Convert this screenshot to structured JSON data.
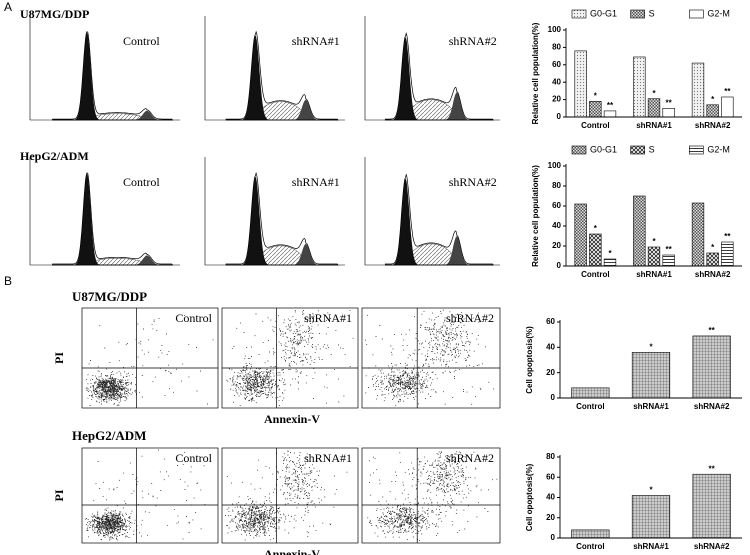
{
  "panel_labels": [
    "A",
    "B"
  ],
  "cell_cycle_plots": [
    {
      "cell_line": "U87MG/DDP",
      "titles": [
        "Control",
        "shRNA#1",
        "shRNA#2"
      ]
    },
    {
      "cell_line": "HepG2/ADM",
      "titles": [
        "Control",
        "shRNA#1",
        "shRNA#2"
      ]
    }
  ],
  "apoptosis_plots": [
    {
      "cell_line": "U87MG/DDP",
      "titles": [
        "Control",
        "shRNA#1",
        "shRNA#2"
      ],
      "y_label": "PI",
      "x_label": "Annexin-V"
    },
    {
      "cell_line": "HepG2/ADM",
      "titles": [
        "Control",
        "shRNA#1",
        "shRNA#2"
      ],
      "y_label": "PI",
      "x_label": "Annexin-V"
    }
  ],
  "chart_data": [
    {
      "type": "bar",
      "y_label": "Relative cell population(%)",
      "categories": [
        "Control",
        "shRNA#1",
        "shRNA#2"
      ],
      "series": [
        {
          "name": "G0-G1",
          "pattern": "dots",
          "values": [
            76,
            69,
            62
          ]
        },
        {
          "name": "S",
          "pattern": "checker",
          "values": [
            18,
            21,
            14
          ],
          "significance": [
            "*",
            "*",
            "*"
          ]
        },
        {
          "name": "G2-M",
          "pattern": "none",
          "values": [
            7,
            10,
            23
          ],
          "significance": [
            "**",
            "**",
            "**"
          ]
        }
      ],
      "ylim": [
        0,
        100
      ],
      "yticks": [
        0,
        20,
        40,
        60,
        80,
        100
      ],
      "legend": "top"
    },
    {
      "type": "bar",
      "y_label": "Relative cell population(%)",
      "categories": [
        "Control",
        "shRNA#1",
        "shRNA#2"
      ],
      "series": [
        {
          "name": "G0-G1",
          "pattern": "checker",
          "values": [
            62,
            70,
            63
          ]
        },
        {
          "name": "S",
          "pattern": "crosshatch",
          "values": [
            32,
            19,
            13
          ],
          "significance": [
            "*",
            "*",
            "*"
          ]
        },
        {
          "name": "G2-M",
          "pattern": "hlines",
          "values": [
            7,
            11,
            24
          ],
          "significance": [
            "*",
            "**",
            "**"
          ]
        }
      ],
      "ylim": [
        0,
        100
      ],
      "yticks": [
        0,
        20,
        40,
        60,
        80,
        100
      ],
      "legend": "top"
    },
    {
      "type": "bar",
      "y_label": "Cell opoptosis(%)",
      "categories": [
        "Control",
        "shRNA#1",
        "shRNA#2"
      ],
      "values": [
        8,
        36,
        49
      ],
      "significance": [
        null,
        "*",
        "**"
      ],
      "pattern": "grid",
      "ylim": [
        0,
        60
      ],
      "yticks": [
        0,
        20,
        40,
        60
      ]
    },
    {
      "type": "bar",
      "y_label": "Cell opoptosis(%)",
      "categories": [
        "Control",
        "shRNA#1",
        "shRNA#2"
      ],
      "values": [
        8,
        42,
        63
      ],
      "significance": [
        null,
        "*",
        "**"
      ],
      "pattern": "grid",
      "ylim": [
        0,
        80
      ],
      "yticks": [
        0,
        20,
        40,
        60,
        80
      ]
    }
  ]
}
